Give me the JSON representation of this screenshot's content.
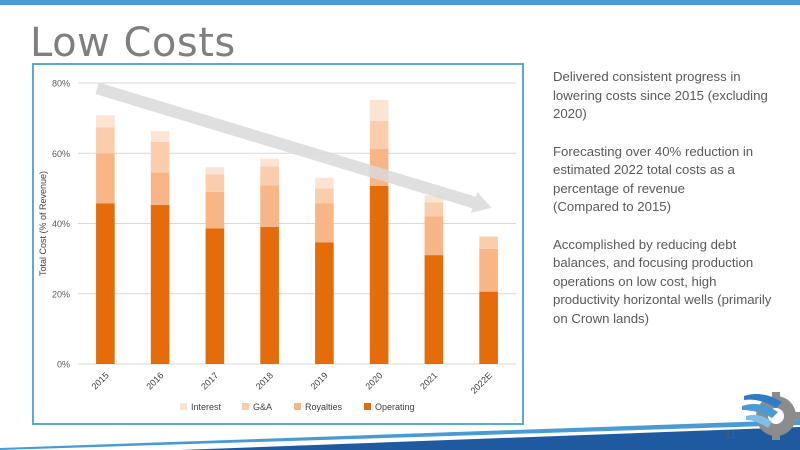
{
  "slide": {
    "title": "Low Costs",
    "page_number": "11",
    "bullets": [
      "Delivered consistent progress in lowering costs since 2015 (excluding 2020)",
      "Forecasting over 40% reduction in estimated 2022 total costs as a percentage of revenue\n(Compared to 2015)",
      "Accomplished by reducing debt balances, and focusing production operations on low cost, high productivity horizontal wells (primarily on Crown lands)"
    ]
  },
  "colors": {
    "accent_blue": "#4a9bd4",
    "footer_dark_blue": "#1f5aa0",
    "logo_gray": "#8c8c8c"
  },
  "chart_data": {
    "type": "bar",
    "stacked": true,
    "categories": [
      "2015",
      "2016",
      "2017",
      "2018",
      "2019",
      "2020",
      "2021",
      "2022E"
    ],
    "series": [
      {
        "name": "Operating",
        "color": "#e46c0a",
        "values": [
          45.7,
          45.3,
          38.6,
          39.0,
          34.6,
          50.7,
          31.0,
          20.6
        ]
      },
      {
        "name": "Royalties",
        "color": "#f8b586",
        "values": [
          14.3,
          9.2,
          10.4,
          11.8,
          11.1,
          10.5,
          11.0,
          12.2
        ]
      },
      {
        "name": "G&A",
        "color": "#fbcdad",
        "values": [
          7.4,
          8.7,
          5.0,
          5.5,
          4.3,
          8.0,
          4.0,
          3.5
        ]
      },
      {
        "name": "Interest",
        "color": "#fde4d2",
        "values": [
          3.4,
          3.1,
          2.0,
          2.2,
          3.0,
          6.0,
          2.0,
          0.0
        ]
      }
    ],
    "ylabel": "Total Cost (% of Revenue)",
    "xlabel": "",
    "ylim": [
      0,
      80
    ],
    "yticks": [
      "0%",
      "20%",
      "40%",
      "60%",
      "80%"
    ],
    "ytick_values": [
      0,
      20,
      40,
      60,
      80
    ],
    "grid": true,
    "legend_position": "bottom",
    "legend_order": [
      "Interest",
      "G&A",
      "Royalties",
      "Operating"
    ],
    "annotation": "downward trend arrow from 2015 to 2022E"
  }
}
